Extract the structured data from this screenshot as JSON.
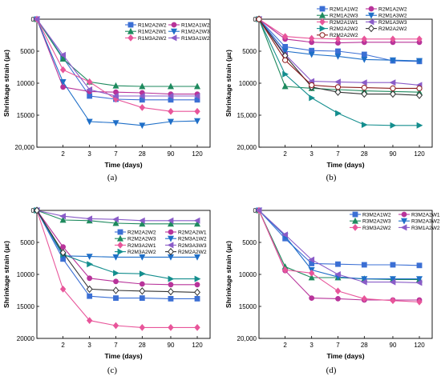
{
  "chart_data": [
    {
      "type": "line",
      "panel_label": "(a)",
      "xlabel": "Time (days)",
      "ylabel": "Shrinkage strain (με)",
      "categories": [
        "2",
        "3",
        "7",
        "28",
        "90",
        "120"
      ],
      "x": [
        0,
        2,
        3,
        7,
        28,
        90,
        120
      ],
      "ylim": [
        0,
        20000
      ],
      "y_inverted": true,
      "y_ticks": [
        "0",
        "5000",
        "10000",
        "15000",
        "20,000"
      ],
      "legend_position": "top-right",
      "grid": false,
      "series": [
        {
          "name": "R1M2A2W2",
          "color": "#3b6fd4",
          "marker": "square",
          "values": [
            0,
            6000,
            12000,
            12500,
            12600,
            12600,
            12600
          ]
        },
        {
          "name": "R1M2A1W2",
          "color": "#b8339a",
          "marker": "circle",
          "values": [
            0,
            10600,
            11300,
            11400,
            11500,
            11700,
            11700
          ]
        },
        {
          "name": "R1M2A2W1",
          "color": "#1e8a5e",
          "marker": "triangle-up",
          "values": [
            0,
            6200,
            9800,
            10400,
            10500,
            10500,
            10500
          ]
        },
        {
          "name": "R1M2A2W3",
          "color": "#1f6fc8",
          "marker": "triangle-down",
          "values": [
            0,
            9800,
            16000,
            16200,
            16600,
            16000,
            15900
          ]
        },
        {
          "name": "R1M3A2W2",
          "color": "#e8559a",
          "marker": "diamond",
          "values": [
            0,
            7900,
            9800,
            12500,
            13800,
            14400,
            14400
          ]
        },
        {
          "name": "R1M3A1W2",
          "color": "#8a5cc8",
          "marker": "triangle-left",
          "values": [
            0,
            5600,
            11000,
            12000,
            12000,
            12000,
            12000
          ]
        }
      ]
    },
    {
      "type": "line",
      "panel_label": "(b)",
      "xlabel": "Time (days)",
      "ylabel": "Shrinkage strain (με)",
      "categories": [
        "2",
        "3",
        "7",
        "28",
        "90",
        "120"
      ],
      "x": [
        0,
        2,
        3,
        7,
        28,
        90,
        120
      ],
      "ylim": [
        0,
        20000
      ],
      "y_inverted": true,
      "y_ticks": [
        "0",
        "5000",
        "10000",
        "15,000",
        "20,000"
      ],
      "legend_position": "top-right",
      "grid": false,
      "series": [
        {
          "name": "R2M1A1W2",
          "color": "#3b6fd4",
          "marker": "square",
          "values": [
            0,
            4300,
            4900,
            5000,
            5500,
            6500,
            6600
          ]
        },
        {
          "name": "R2M1A2W2",
          "color": "#b8339a",
          "marker": "circle",
          "values": [
            0,
            3100,
            3600,
            3700,
            3600,
            3600,
            3600
          ]
        },
        {
          "name": "R2M1A2W3",
          "color": "#1e8a5e",
          "marker": "triangle-up",
          "values": [
            0,
            10500,
            10800,
            11000,
            11200,
            11300,
            11400
          ]
        },
        {
          "name": "R2M1A3W2",
          "color": "#1f6fc8",
          "marker": "triangle-down",
          "values": [
            0,
            5000,
            5500,
            5800,
            6300,
            6400,
            6500
          ]
        },
        {
          "name": "R2M2A1W1",
          "color": "#e8559a",
          "marker": "diamond",
          "values": [
            0,
            2700,
            3000,
            3100,
            3100,
            3100,
            3100
          ]
        },
        {
          "name": "R2M1A3W3",
          "color": "#8a5cc8",
          "marker": "triangle-left",
          "values": [
            0,
            5500,
            9700,
            9800,
            9900,
            9900,
            10300
          ]
        },
        {
          "name": "R2M2A2W2",
          "color": "#148e8e",
          "marker": "triangle-right",
          "values": [
            0,
            8600,
            12300,
            14700,
            16500,
            16600,
            16600
          ]
        },
        {
          "name": "R2M2A2W2",
          "color": "#333333",
          "marker": "diamond-open",
          "values": [
            0,
            5700,
            10600,
            11400,
            11700,
            11700,
            11900
          ]
        },
        {
          "name": "R2M2A2W2",
          "color": "#8b1a1a",
          "marker": "circle-open",
          "values": [
            0,
            6400,
            10300,
            10600,
            10700,
            10800,
            10800
          ]
        }
      ]
    },
    {
      "type": "line",
      "panel_label": "(c)",
      "xlabel": "Time (days)",
      "ylabel": "Shrinkage strain (με)",
      "categories": [
        "2",
        "3",
        "7",
        "28",
        "90",
        "120"
      ],
      "x": [
        0,
        2,
        3,
        7,
        28,
        90,
        120
      ],
      "ylim": [
        0,
        20000
      ],
      "y_inverted": true,
      "y_ticks": [
        "0",
        "5000",
        "10000",
        "15000",
        "20000"
      ],
      "legend_position": "top-right",
      "grid": false,
      "series": [
        {
          "name": "R2M2A2W2",
          "color": "#3b6fd4",
          "marker": "square",
          "values": [
            0,
            7600,
            13400,
            13700,
            13700,
            13800,
            13800
          ]
        },
        {
          "name": "R2M2A2W1",
          "color": "#b8339a",
          "marker": "circle",
          "values": [
            0,
            5700,
            10600,
            11100,
            11500,
            11600,
            11600
          ]
        },
        {
          "name": "R2M2A2W3",
          "color": "#1e8a5e",
          "marker": "triangle-up",
          "values": [
            0,
            1500,
            1600,
            2000,
            2100,
            2100,
            2100
          ]
        },
        {
          "name": "R2M3A1W2",
          "color": "#1f6fc8",
          "marker": "triangle-down",
          "values": [
            0,
            7100,
            7200,
            7300,
            7300,
            7300,
            7300
          ]
        },
        {
          "name": "R2M3A2W1",
          "color": "#e8559a",
          "marker": "diamond",
          "values": [
            0,
            12300,
            17200,
            18000,
            18300,
            18300,
            18300
          ]
        },
        {
          "name": "R2M3A3W3",
          "color": "#8a5cc8",
          "marker": "triangle-left",
          "values": [
            0,
            900,
            1300,
            1400,
            1600,
            1600,
            1600
          ]
        },
        {
          "name": "R2M3A2W2",
          "color": "#148e8e",
          "marker": "triangle-right",
          "values": [
            0,
            6900,
            8400,
            9800,
            9900,
            10700,
            10700
          ]
        },
        {
          "name": "R2M2A2W2",
          "color": "#333333",
          "marker": "diamond-open",
          "values": [
            0,
            6600,
            12300,
            12500,
            12600,
            12700,
            12800
          ]
        }
      ]
    },
    {
      "type": "line",
      "panel_label": "(d)",
      "xlabel": "Time (days)",
      "ylabel": "Shrinkage strain (με)",
      "categories": [
        "2",
        "3",
        "7",
        "28",
        "90",
        "120"
      ],
      "x": [
        0,
        2,
        3,
        7,
        28,
        90,
        120
      ],
      "ylim": [
        0,
        20000
      ],
      "y_inverted": true,
      "y_ticks": [
        "0",
        "5000",
        "10000",
        "15000",
        "20,000"
      ],
      "legend_position": "top-right",
      "grid": false,
      "series": [
        {
          "name": "R3M2A1W2",
          "color": "#3b6fd4",
          "marker": "square",
          "values": [
            0,
            4400,
            8300,
            8400,
            8500,
            8500,
            8600
          ]
        },
        {
          "name": "R3M2A2W1",
          "color": "#b8339a",
          "marker": "circle",
          "values": [
            0,
            9400,
            13700,
            13800,
            14000,
            14000,
            14000
          ]
        },
        {
          "name": "R3M2A2W3",
          "color": "#1e8a5e",
          "marker": "triangle-up",
          "values": [
            0,
            8800,
            10500,
            10500,
            10700,
            10800,
            10800
          ]
        },
        {
          "name": "R3M2A3W2",
          "color": "#1f6fc8",
          "marker": "triangle-down",
          "values": [
            0,
            4000,
            9300,
            10400,
            10700,
            10700,
            10700
          ]
        },
        {
          "name": "R3M3A2W2",
          "color": "#e8559a",
          "marker": "diamond",
          "values": [
            0,
            9300,
            9800,
            12600,
            13800,
            14100,
            14300
          ]
        },
        {
          "name": "R3M1A2W2",
          "color": "#8a5cc8",
          "marker": "triangle-left",
          "values": [
            0,
            3800,
            7700,
            10000,
            11200,
            11200,
            11300
          ]
        }
      ]
    }
  ]
}
